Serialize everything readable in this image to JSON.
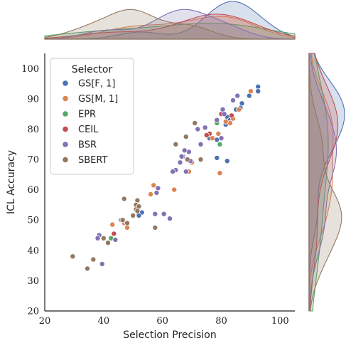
{
  "chart_data": {
    "type": "scatter",
    "xlabel": "Selection Precision",
    "ylabel": "ICL Accuracy",
    "xlim": [
      20,
      105
    ],
    "ylim": [
      20,
      105
    ],
    "x_ticks": [
      20,
      40,
      60,
      80,
      100
    ],
    "y_ticks": [
      20,
      30,
      40,
      50,
      60,
      70,
      80,
      90,
      100
    ],
    "grid": false,
    "legend_title": "Selector",
    "legend_position": "upper-left",
    "marginals": "kde (top: x distribution, right: y distribution)",
    "series": [
      {
        "name": "GS[F, 1]",
        "color": "#4c72b0",
        "x": [
          92.5,
          92.5,
          89.5,
          87.0,
          85.0,
          86.5,
          82.0,
          83.0,
          81.5,
          76.0,
          78.5,
          82.0,
          78.5,
          53.0,
          52.0
        ],
        "y": [
          94.0,
          92.5,
          91.0,
          88.5,
          86.5,
          87.0,
          84.0,
          83.0,
          81.5,
          77.0,
          70.5,
          69.5,
          76.5,
          52.5,
          51.5
        ]
      },
      {
        "name": "GS[M, 1]",
        "color": "#dd8452",
        "x": [
          90.0,
          86.0,
          84.0,
          83.0,
          81.5,
          79.0,
          77.0,
          79.5,
          70.0,
          69.0,
          64.0,
          56.0,
          57.0,
          47.0,
          48.0,
          43.0
        ],
        "y": [
          92.5,
          86.5,
          83.5,
          82.0,
          82.5,
          78.5,
          77.0,
          65.5,
          69.0,
          66.0,
          60.0,
          58.5,
          61.5,
          49.0,
          47.5,
          48.5
        ]
      },
      {
        "name": "EPR",
        "color": "#55a868",
        "x": [
          79.5,
          78.5,
          42.5
        ],
        "y": [
          75.0,
          82.0,
          44.0
        ]
      },
      {
        "name": "CEIL",
        "color": "#c44e52",
        "x": [
          80.0,
          76.0,
          75.0,
          83.5,
          43.5
        ],
        "y": [
          85.0,
          78.5,
          78.0,
          84.5,
          45.5
        ]
      },
      {
        "name": "BSR",
        "color": "#8172b3",
        "x": [
          85.5,
          84.0,
          80.5,
          81.0,
          78.5,
          74.5,
          72.0,
          68.0,
          67.0,
          66.5,
          66.0,
          69.0,
          64.5,
          63.5,
          58.5,
          58.0,
          62.5,
          60.5,
          68.0,
          69.5,
          38.5,
          38.0,
          44.0,
          39.5,
          46.0
        ],
        "y": [
          91.0,
          89.5,
          86.5,
          85.0,
          83.0,
          80.5,
          80.0,
          77.5,
          71.0,
          71.0,
          69.0,
          72.5,
          66.5,
          66.0,
          60.5,
          59.0,
          50.5,
          52.0,
          66.0,
          69.5,
          45.0,
          44.0,
          43.5,
          35.5,
          50.0
        ],
        "extra": [
          {
            "x": 73.0,
            "y": 75.0
          },
          {
            "x": 80.0,
            "y": 77.0
          },
          {
            "x": 57.5,
            "y": 52.0
          },
          {
            "x": 67.5,
            "y": 73.0
          }
        ]
      },
      {
        "name": "SBERT",
        "color": "#937860",
        "x": [
          71.0,
          68.0,
          64.5,
          73.0,
          68.5,
          47.0,
          51.5,
          51.0,
          51.0,
          51.5,
          52.0,
          50.0,
          57.5,
          40.0,
          41.5,
          36.5,
          34.5,
          29.5,
          48.0,
          46.5
        ],
        "y": [
          82.0,
          77.5,
          75.0,
          70.0,
          70.0,
          57.0,
          56.5,
          55.0,
          53.5,
          53.0,
          54.5,
          51.5,
          47.5,
          44.0,
          42.5,
          37.0,
          34.0,
          38.0,
          49.0,
          50.0
        ]
      }
    ]
  }
}
